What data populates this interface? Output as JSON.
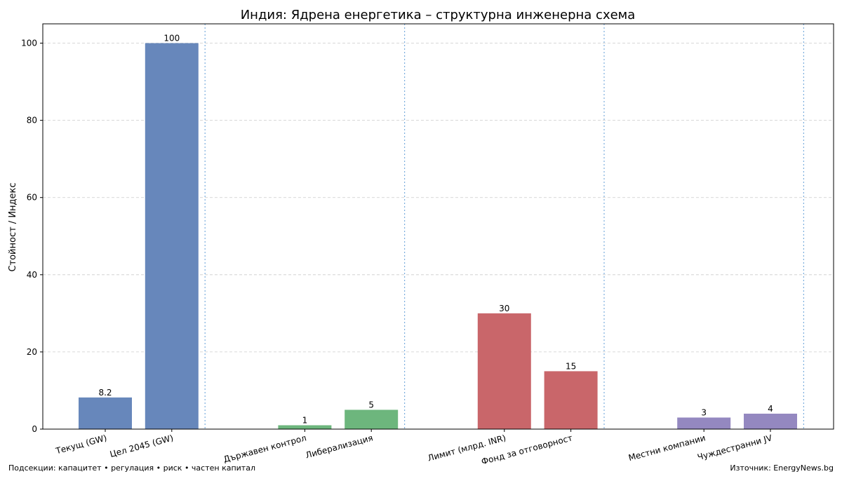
{
  "chart_data": {
    "type": "bar",
    "title": "Индия: Ядрена енергетика – структурна инженерна схема",
    "xlabel": "",
    "ylabel": "Стойност / Индекс",
    "ylim": [
      0,
      105
    ],
    "yticks": [
      0,
      20,
      40,
      60,
      80,
      100
    ],
    "grid": true,
    "categories": [
      "Текущ (GW)",
      "Цел 2045 (GW)",
      "Държавен контрол",
      "Либерализация",
      "Лимит (млрд. INR)",
      "Фонд за отговорност",
      "Местни компании",
      "Чуждестранни JV"
    ],
    "groups": [
      {
        "bars": [
          {
            "label": "Текущ (GW)",
            "value": 8.2,
            "value_label": "8.2"
          },
          {
            "label": "Цел 2045 (GW)",
            "value": 100,
            "value_label": "100"
          }
        ],
        "color": "#6787bb"
      },
      {
        "bars": [
          {
            "label": "Държавен контрол",
            "value": 1,
            "value_label": "1"
          },
          {
            "label": "Либерализация",
            "value": 5,
            "value_label": "5"
          }
        ],
        "color": "#6db67d"
      },
      {
        "bars": [
          {
            "label": "Лимит (млрд. INR)",
            "value": 30,
            "value_label": "30"
          },
          {
            "label": "Фонд за отговорност",
            "value": 15,
            "value_label": "15"
          }
        ],
        "color": "#c9666a"
      },
      {
        "bars": [
          {
            "label": "Местни компании",
            "value": 3,
            "value_label": "3"
          },
          {
            "label": "Чуждестранни JV",
            "value": 4,
            "value_label": "4"
          }
        ],
        "color": "#9488c0"
      }
    ]
  },
  "footer": {
    "left": "Подсекции: капацитет • регулация • риск • частен капитал",
    "right": "Източник: EnergyNews.bg"
  },
  "colors": {
    "grid": "#cccccc",
    "separator": "#5b9bd5",
    "axis": "#000000"
  }
}
